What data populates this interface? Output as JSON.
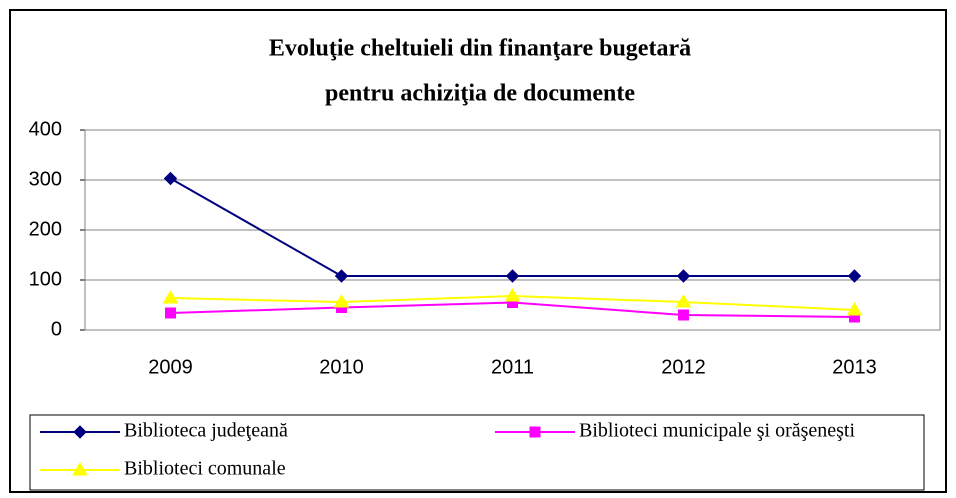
{
  "chart_data": {
    "type": "line",
    "title": [
      "Evoluţie cheltuieli din finanţare bugetară",
      "pentru achiziţia de documente"
    ],
    "categories": [
      "2009",
      "2010",
      "2011",
      "2012",
      "2013"
    ],
    "series": [
      {
        "name": "Biblioteca judeţeană",
        "color": "#000080",
        "marker": "diamond",
        "values": [
          303,
          108,
          108,
          108,
          108
        ]
      },
      {
        "name": "Biblioteci municipale şi orăşeneşti",
        "color": "#ff00ff",
        "marker": "square",
        "values": [
          34,
          45,
          55,
          30,
          26
        ]
      },
      {
        "name": "Biblioteci comunale",
        "color": "#ffff00",
        "marker": "triangle",
        "values": [
          64,
          56,
          68,
          56,
          40
        ]
      }
    ],
    "ylim": [
      0,
      400
    ],
    "yticks": [
      0,
      100,
      200,
      300,
      400
    ],
    "grid": true,
    "legend": "bottom"
  }
}
